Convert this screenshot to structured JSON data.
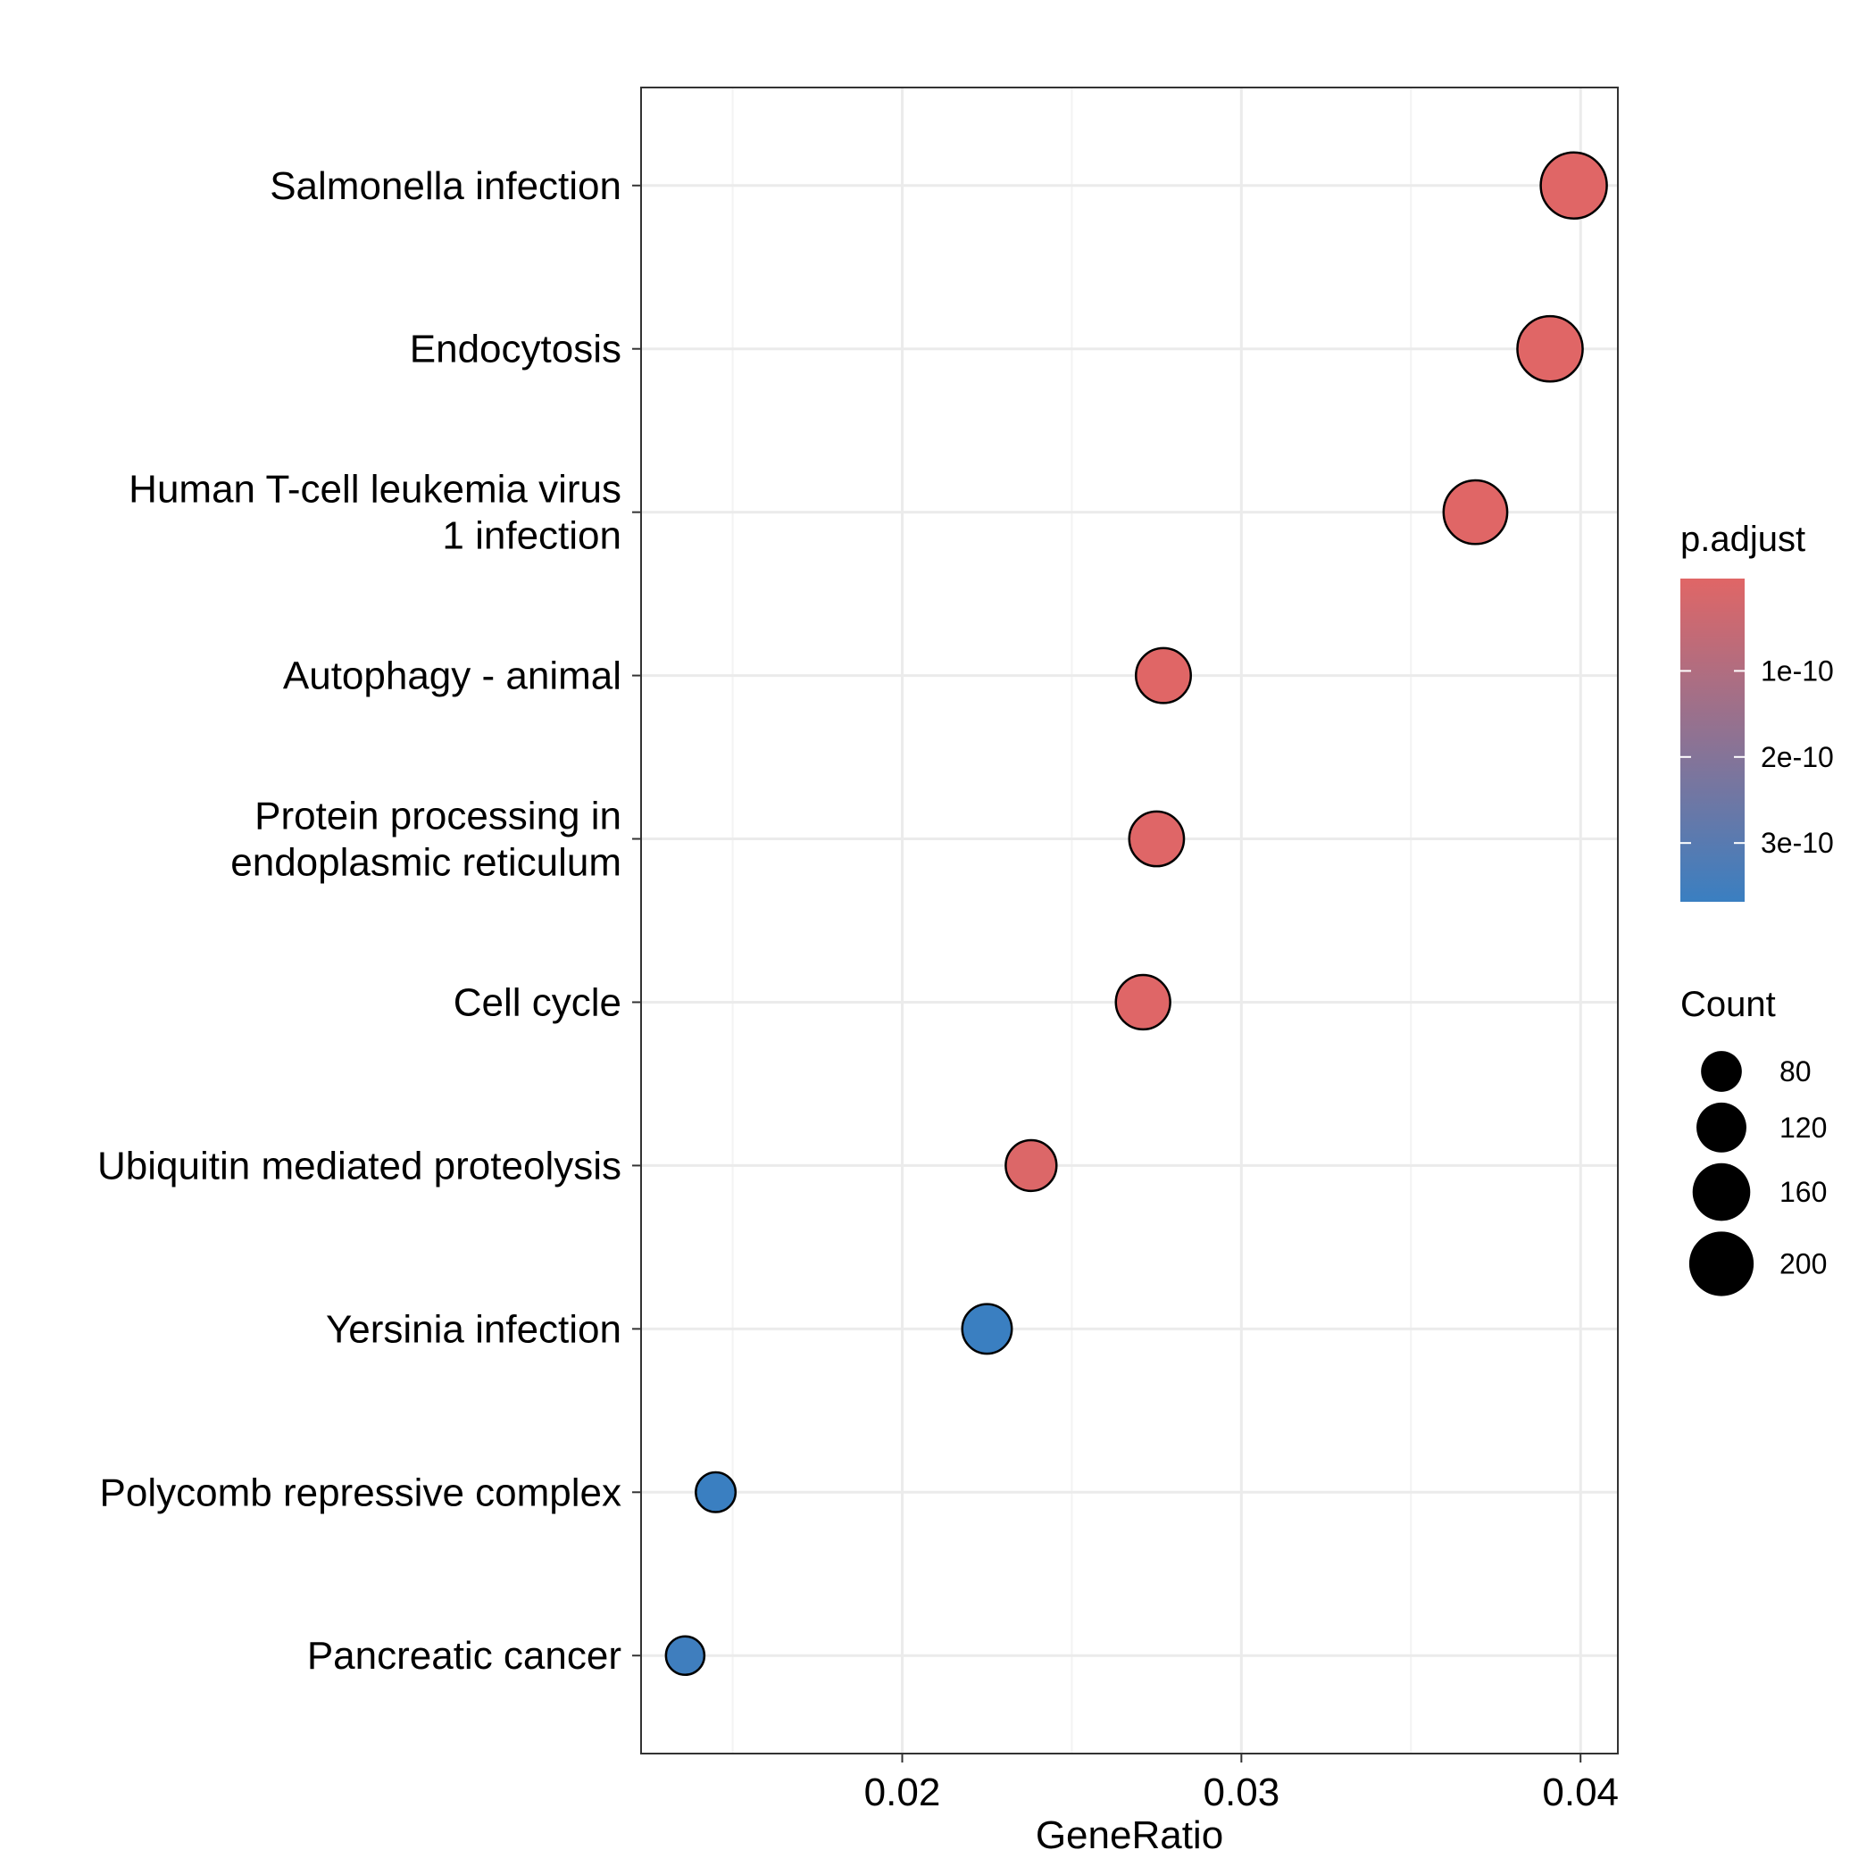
{
  "chart_data": {
    "type": "scatter",
    "title": "",
    "xlabel": "GeneRatio",
    "ylabel": "",
    "xlim": [
      0.0123,
      0.0411
    ],
    "xticks": [
      0.02,
      0.03,
      0.04
    ],
    "xtick_labels": [
      "0.02",
      "0.03",
      "0.04"
    ],
    "grid": true,
    "legend_position": "right",
    "categories": [
      [
        "Salmonella infection"
      ],
      [
        "Endocytosis"
      ],
      [
        "Human T-cell leukemia virus",
        "1 infection"
      ],
      [
        "Autophagy - animal"
      ],
      [
        "Protein processing in",
        "endoplasmic reticulum"
      ],
      [
        "Cell cycle"
      ],
      [
        "Ubiquitin mediated proteolysis"
      ],
      [
        "Yersinia infection"
      ],
      [
        "Polycomb repressive complex"
      ],
      [
        "Pancreatic cancer"
      ]
    ],
    "points": [
      {
        "gene_ratio": 0.0398,
        "count": 210,
        "p_adjust": 1e-12
      },
      {
        "gene_ratio": 0.0391,
        "count": 205,
        "p_adjust": 1e-12
      },
      {
        "gene_ratio": 0.0369,
        "count": 195,
        "p_adjust": 1e-12
      },
      {
        "gene_ratio": 0.0277,
        "count": 145,
        "p_adjust": 2e-12
      },
      {
        "gene_ratio": 0.0275,
        "count": 144,
        "p_adjust": 3e-12
      },
      {
        "gene_ratio": 0.0271,
        "count": 142,
        "p_adjust": 3e-12
      },
      {
        "gene_ratio": 0.0238,
        "count": 124,
        "p_adjust": 1e-11
      },
      {
        "gene_ratio": 0.0225,
        "count": 118,
        "p_adjust": 3.6e-10
      },
      {
        "gene_ratio": 0.0145,
        "count": 76,
        "p_adjust": 3.6e-10
      },
      {
        "gene_ratio": 0.0136,
        "count": 71,
        "p_adjust": 3.5e-10
      }
    ],
    "color_legend": {
      "title": "p.adjust",
      "range": [
        1e-12,
        3.6e-10
      ],
      "low_color": "#e06666",
      "high_color": "#3a7fc1",
      "breaks": [
        1e-10,
        2e-10,
        3e-10
      ],
      "labels": [
        "1e-10",
        "2e-10",
        "3e-10"
      ]
    },
    "size_legend": {
      "title": "Count",
      "breaks": [
        80,
        120,
        160,
        200
      ],
      "labels": [
        "80",
        "120",
        "160",
        "200"
      ]
    },
    "colors": {
      "grid_major": "#ebebeb",
      "grid_minor": "#f3f3f3",
      "panel_border": "#333333",
      "point_outline": "#000000"
    }
  }
}
